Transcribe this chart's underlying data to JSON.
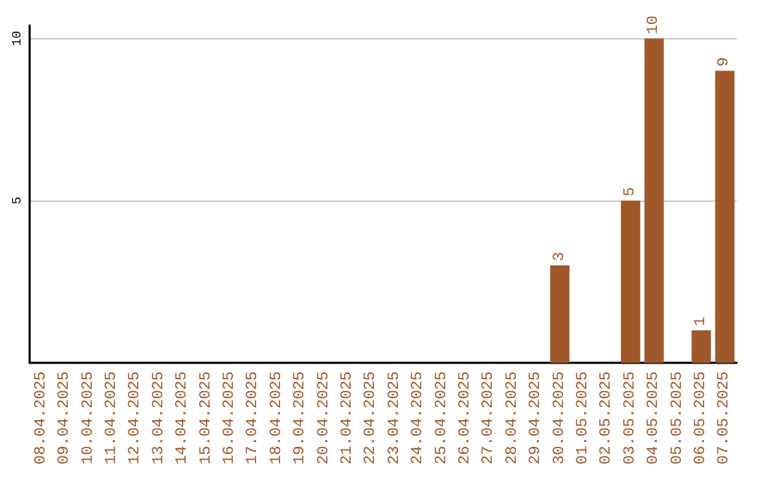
{
  "chart_data": {
    "type": "bar",
    "categories": [
      "08.04.2025",
      "09.04.2025",
      "10.04.2025",
      "11.04.2025",
      "12.04.2025",
      "13.04.2025",
      "14.04.2025",
      "15.04.2025",
      "16.04.2025",
      "17.04.2025",
      "18.04.2025",
      "19.04.2025",
      "20.04.2025",
      "21.04.2025",
      "22.04.2025",
      "23.04.2025",
      "24.04.2025",
      "25.04.2025",
      "26.04.2025",
      "27.04.2025",
      "28.04.2025",
      "29.04.2025",
      "30.04.2025",
      "01.05.2025",
      "02.05.2025",
      "03.05.2025",
      "04.05.2025",
      "05.05.2025",
      "06.05.2025",
      "07.05.2025"
    ],
    "values": [
      0,
      0,
      0,
      0,
      0,
      0,
      0,
      0,
      0,
      0,
      0,
      0,
      0,
      0,
      0,
      0,
      0,
      0,
      0,
      0,
      0,
      0,
      3,
      0,
      0,
      5,
      10,
      0,
      1,
      9
    ],
    "value_labels": [
      null,
      null,
      null,
      null,
      null,
      null,
      null,
      null,
      null,
      null,
      null,
      null,
      null,
      null,
      null,
      null,
      null,
      null,
      null,
      null,
      null,
      null,
      "3",
      null,
      null,
      "5",
      "10",
      null,
      "1",
      "9"
    ],
    "color": "#a0582a",
    "ylim": [
      0,
      10.4
    ],
    "yticks": [
      5,
      10
    ],
    "grid": "y"
  }
}
